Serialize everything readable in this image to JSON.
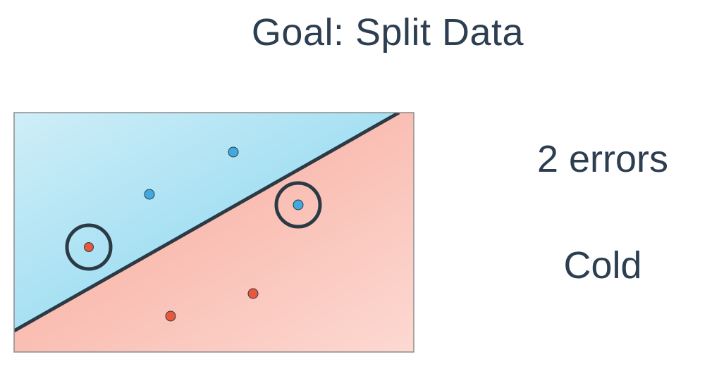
{
  "title": "Goal: Split Data",
  "errors_label": "2 errors",
  "status_label": "Cold",
  "colors": {
    "blue_region_light": "#cfeef8",
    "blue_region_dark": "#7fd3ee",
    "red_region_dark": "#f7a596",
    "red_region_light": "#fcd9d2",
    "blue_point": "#3fa9e0",
    "red_point": "#e9583c",
    "line": "#2c3a45",
    "frame": "#8c8c8c"
  },
  "points": [
    {
      "class": "blue",
      "region": "blue",
      "misclassified": false
    },
    {
      "class": "blue",
      "region": "blue",
      "misclassified": false
    },
    {
      "class": "red",
      "region": "blue",
      "misclassified": true
    },
    {
      "class": "blue",
      "region": "red",
      "misclassified": true
    },
    {
      "class": "red",
      "region": "red",
      "misclassified": false
    },
    {
      "class": "red",
      "region": "red",
      "misclassified": false
    }
  ]
}
